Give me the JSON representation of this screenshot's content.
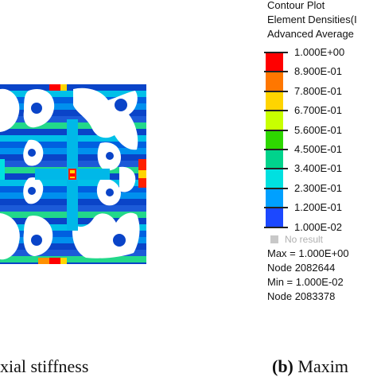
{
  "legend": {
    "header_lines": [
      "Contour Plot",
      "Element Densities(I",
      "Advanced Average"
    ],
    "scale": [
      {
        "label": "1.000E+00",
        "color": "#ff0000"
      },
      {
        "label": "8.900E-01",
        "color": "#ff7700"
      },
      {
        "label": "7.800E-01",
        "color": "#ffd400"
      },
      {
        "label": "6.700E-01",
        "color": "#c8ff00"
      },
      {
        "label": "5.600E-01",
        "color": "#2ed700"
      },
      {
        "label": "4.500E-01",
        "color": "#00d38c"
      },
      {
        "label": "3.400E-01",
        "color": "#00e0e0"
      },
      {
        "label": "2.300E-01",
        "color": "#00a0ff"
      },
      {
        "label": "1.200E-01",
        "color": "#1c48ff"
      },
      {
        "label": "1.000E-02",
        "color": "#0000b4"
      }
    ],
    "no_result": "No result",
    "stats": [
      "Max = 1.000E+00",
      "Node 2082644",
      "Min = 1.000E-02",
      "Node 2083378"
    ]
  },
  "captions": {
    "left": "xial stiffness",
    "right_label": "(b)",
    "right_text": " Maxim"
  }
}
